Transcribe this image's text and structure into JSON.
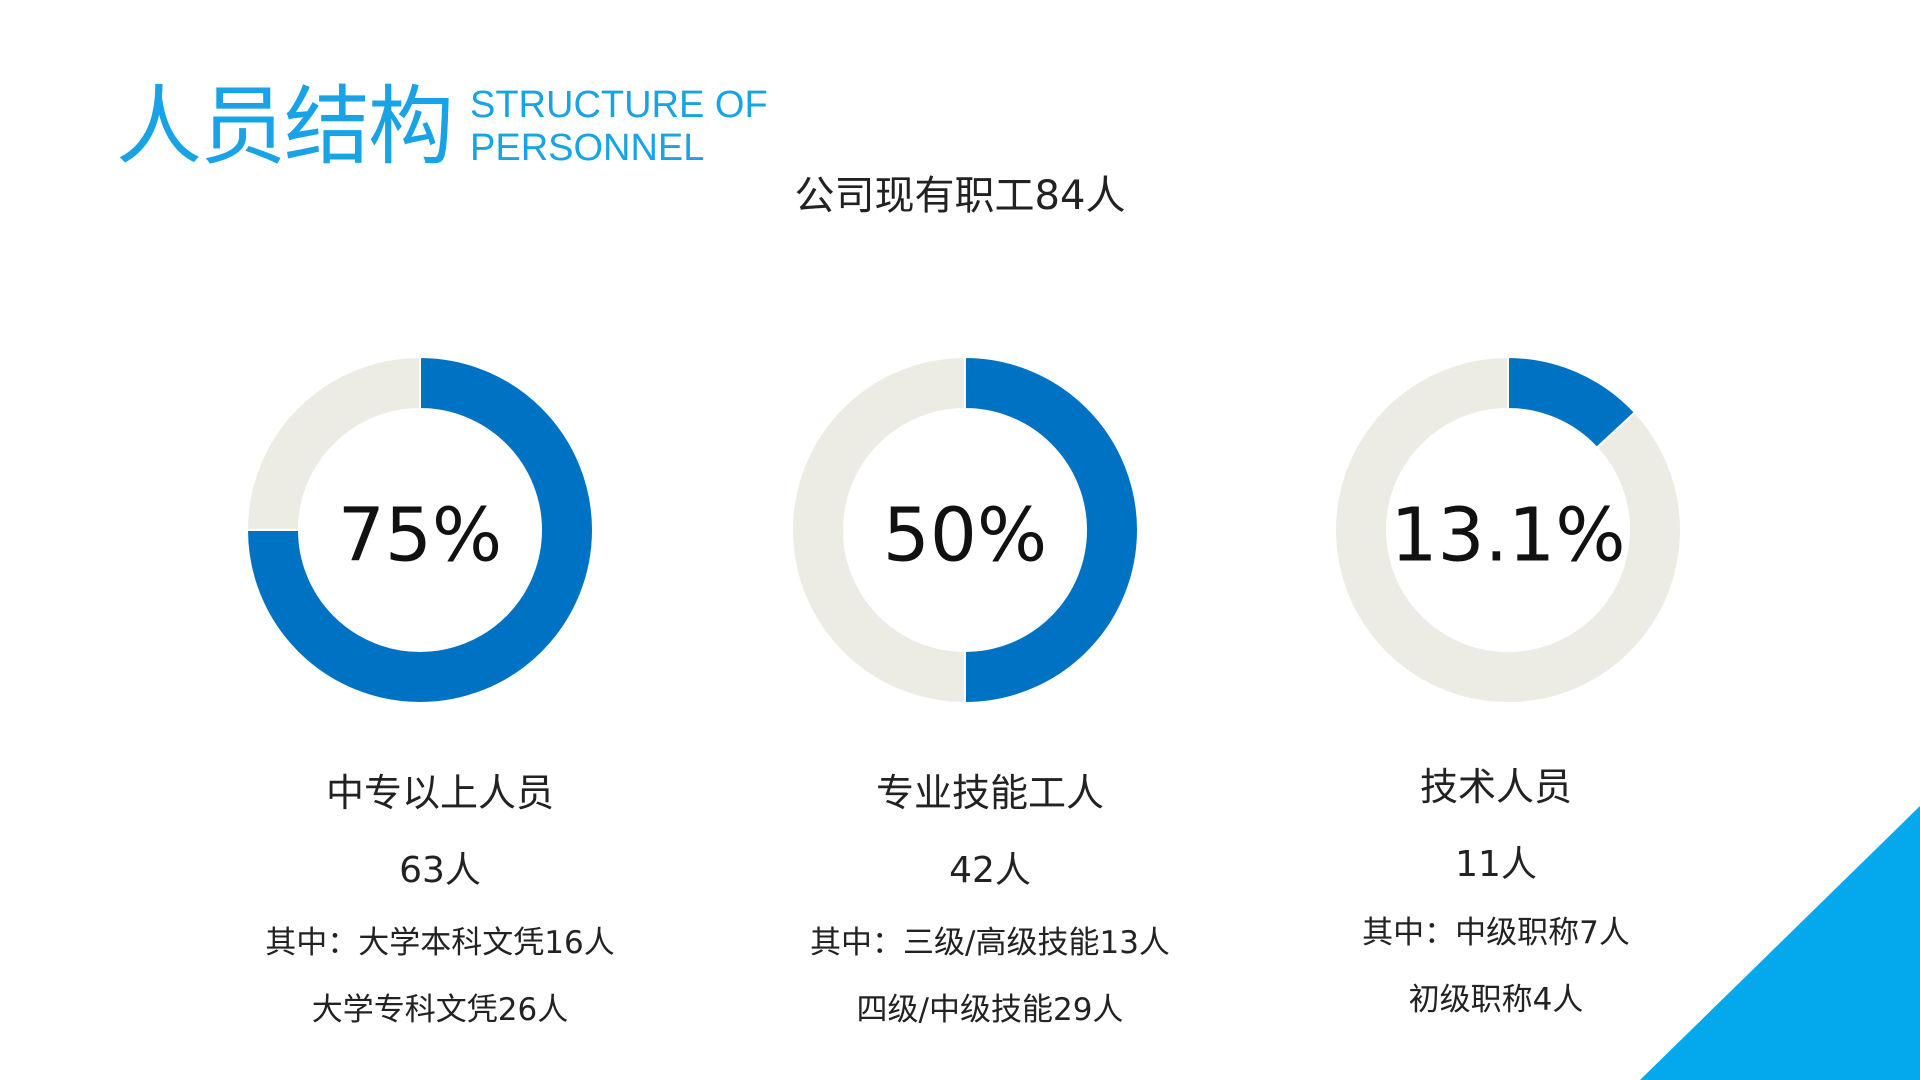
{
  "header": {
    "title_cn": "人员结构",
    "title_en_line1": "STRUCTURE OF",
    "title_en_line2": "PERSONNEL"
  },
  "subtitle": "公司现有职工84人",
  "colors": {
    "accent": "#0072c4",
    "remainder": "#ecebe4",
    "title": "#17a3e6",
    "corner": "#04a8ec"
  },
  "chart_data": [
    {
      "type": "pie",
      "center_label": "75%",
      "values": [
        75,
        25
      ],
      "start": "left",
      "direction": "counterclockwise"
    },
    {
      "type": "pie",
      "center_label": "50%",
      "values": [
        50,
        50
      ],
      "start": "top",
      "direction": "clockwise"
    },
    {
      "type": "pie",
      "center_label": "13.1%",
      "values": [
        13.1,
        86.9
      ],
      "start": "top",
      "direction": "clockwise"
    }
  ],
  "blocks": [
    {
      "name": "中专以上人员",
      "count": "63人",
      "details": [
        "其中：大学本科文凭16人",
        "大学专科文凭26人"
      ]
    },
    {
      "name": "专业技能工人",
      "count": "42人",
      "details": [
        "其中：三级/高级技能13人",
        "四级/中级技能29人"
      ]
    },
    {
      "name": "技术人员",
      "count": "11人",
      "details": [
        "其中：中级职称7人",
        "初级职称4人"
      ]
    }
  ]
}
